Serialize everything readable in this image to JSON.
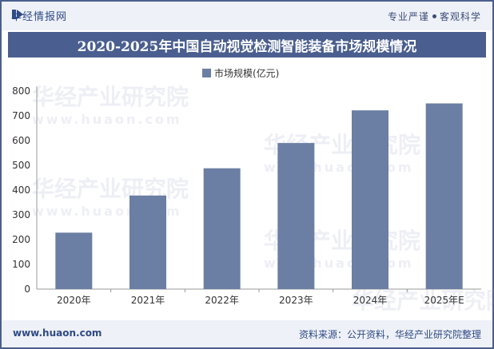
{
  "header": {
    "brand": "华经情报网",
    "slogan_left": "专业严谨",
    "slogan_right": "客观科学"
  },
  "title": "2020-2025年中国自动视觉检测智能装备市场规模情况",
  "legend": "市场规模(亿元)",
  "watermark": {
    "cn": "华经产业研究院",
    "en": "www.huaon.com"
  },
  "footer": {
    "url": "www.huaon.com",
    "source": "资料来源：公开资料，华经产业研究院整理"
  },
  "colors": {
    "bar": "#6b7ea3",
    "title_bg": "#4a5f8f",
    "accent": "#2f4a85"
  },
  "chart_data": {
    "type": "bar",
    "categories": [
      "2020年",
      "2021年",
      "2022年",
      "2023年",
      "2024年",
      "2025年E"
    ],
    "series": [
      {
        "name": "市场规模(亿元)",
        "values": [
          228,
          378,
          488,
          590,
          722,
          750
        ]
      }
    ],
    "ylim": [
      0,
      800
    ],
    "yticks": [
      0,
      100,
      200,
      300,
      400,
      500,
      600,
      700,
      800
    ],
    "xlabel": "",
    "ylabel": "",
    "legend_position": "top-center",
    "grid": false
  }
}
